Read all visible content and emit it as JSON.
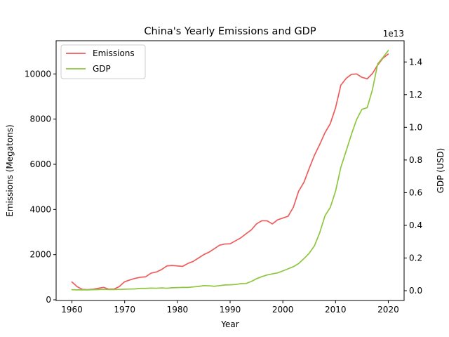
{
  "chart_data": {
    "type": "line",
    "title": "China's Yearly Emissions and GDP",
    "xlabel": "Year",
    "ylabel": "Emissions (Megatons)",
    "y2label": "GDP (USD)",
    "y2_offset_text": "1e13",
    "xlim": [
      1957,
      2023
    ],
    "ylim": [
      -30,
      11470
    ],
    "y2lim": [
      -0.06,
      1.53
    ],
    "y2_scale_exponent": 13,
    "xticks": [
      1960,
      1970,
      1980,
      1990,
      2000,
      2010,
      2020
    ],
    "yticks": [
      0,
      2000,
      4000,
      6000,
      8000,
      10000
    ],
    "y2ticks": [
      0.0,
      0.2,
      0.4,
      0.6,
      0.8,
      1.0,
      1.2,
      1.4
    ],
    "grid": false,
    "legend_position": "upper-left",
    "colors": {
      "emissions": "#ee5c5c",
      "gdp": "#8ec63f"
    },
    "x": [
      1960,
      1961,
      1962,
      1963,
      1964,
      1965,
      1966,
      1967,
      1968,
      1969,
      1970,
      1971,
      1972,
      1973,
      1974,
      1975,
      1976,
      1977,
      1978,
      1979,
      1980,
      1981,
      1982,
      1983,
      1984,
      1985,
      1986,
      1987,
      1988,
      1989,
      1990,
      1991,
      1992,
      1993,
      1994,
      1995,
      1996,
      1997,
      1998,
      1999,
      2000,
      2001,
      2002,
      2003,
      2004,
      2005,
      2006,
      2007,
      2008,
      2009,
      2010,
      2011,
      2012,
      2013,
      2014,
      2015,
      2016,
      2017,
      2018,
      2019,
      2020
    ],
    "series": [
      {
        "name": "Emissions",
        "axis": "left",
        "values": [
          790,
          580,
          460,
          450,
          470,
          510,
          550,
          470,
          480,
          590,
          800,
          880,
          950,
          1000,
          1020,
          1180,
          1230,
          1340,
          1500,
          1520,
          1500,
          1480,
          1610,
          1700,
          1850,
          2000,
          2110,
          2260,
          2420,
          2470,
          2480,
          2610,
          2740,
          2920,
          3090,
          3360,
          3500,
          3500,
          3360,
          3540,
          3620,
          3700,
          4100,
          4810,
          5200,
          5820,
          6400,
          6880,
          7400,
          7800,
          8500,
          9500,
          9800,
          9980,
          10000,
          9850,
          9780,
          10020,
          10400,
          10700,
          10880
        ]
      },
      {
        "name": "GDP",
        "axis": "right",
        "values": [
          0.006,
          0.005,
          0.005,
          0.005,
          0.006,
          0.007,
          0.008,
          0.007,
          0.007,
          0.008,
          0.009,
          0.01,
          0.011,
          0.014,
          0.014,
          0.016,
          0.015,
          0.017,
          0.015,
          0.018,
          0.019,
          0.02,
          0.02,
          0.023,
          0.026,
          0.031,
          0.03,
          0.027,
          0.031,
          0.035,
          0.036,
          0.038,
          0.043,
          0.044,
          0.056,
          0.073,
          0.086,
          0.096,
          0.103,
          0.109,
          0.121,
          0.134,
          0.147,
          0.166,
          0.196,
          0.229,
          0.275,
          0.355,
          0.459,
          0.51,
          0.609,
          0.755,
          0.854,
          0.956,
          1.048,
          1.11,
          1.12,
          1.231,
          1.389,
          1.428,
          1.47
        ]
      }
    ]
  }
}
